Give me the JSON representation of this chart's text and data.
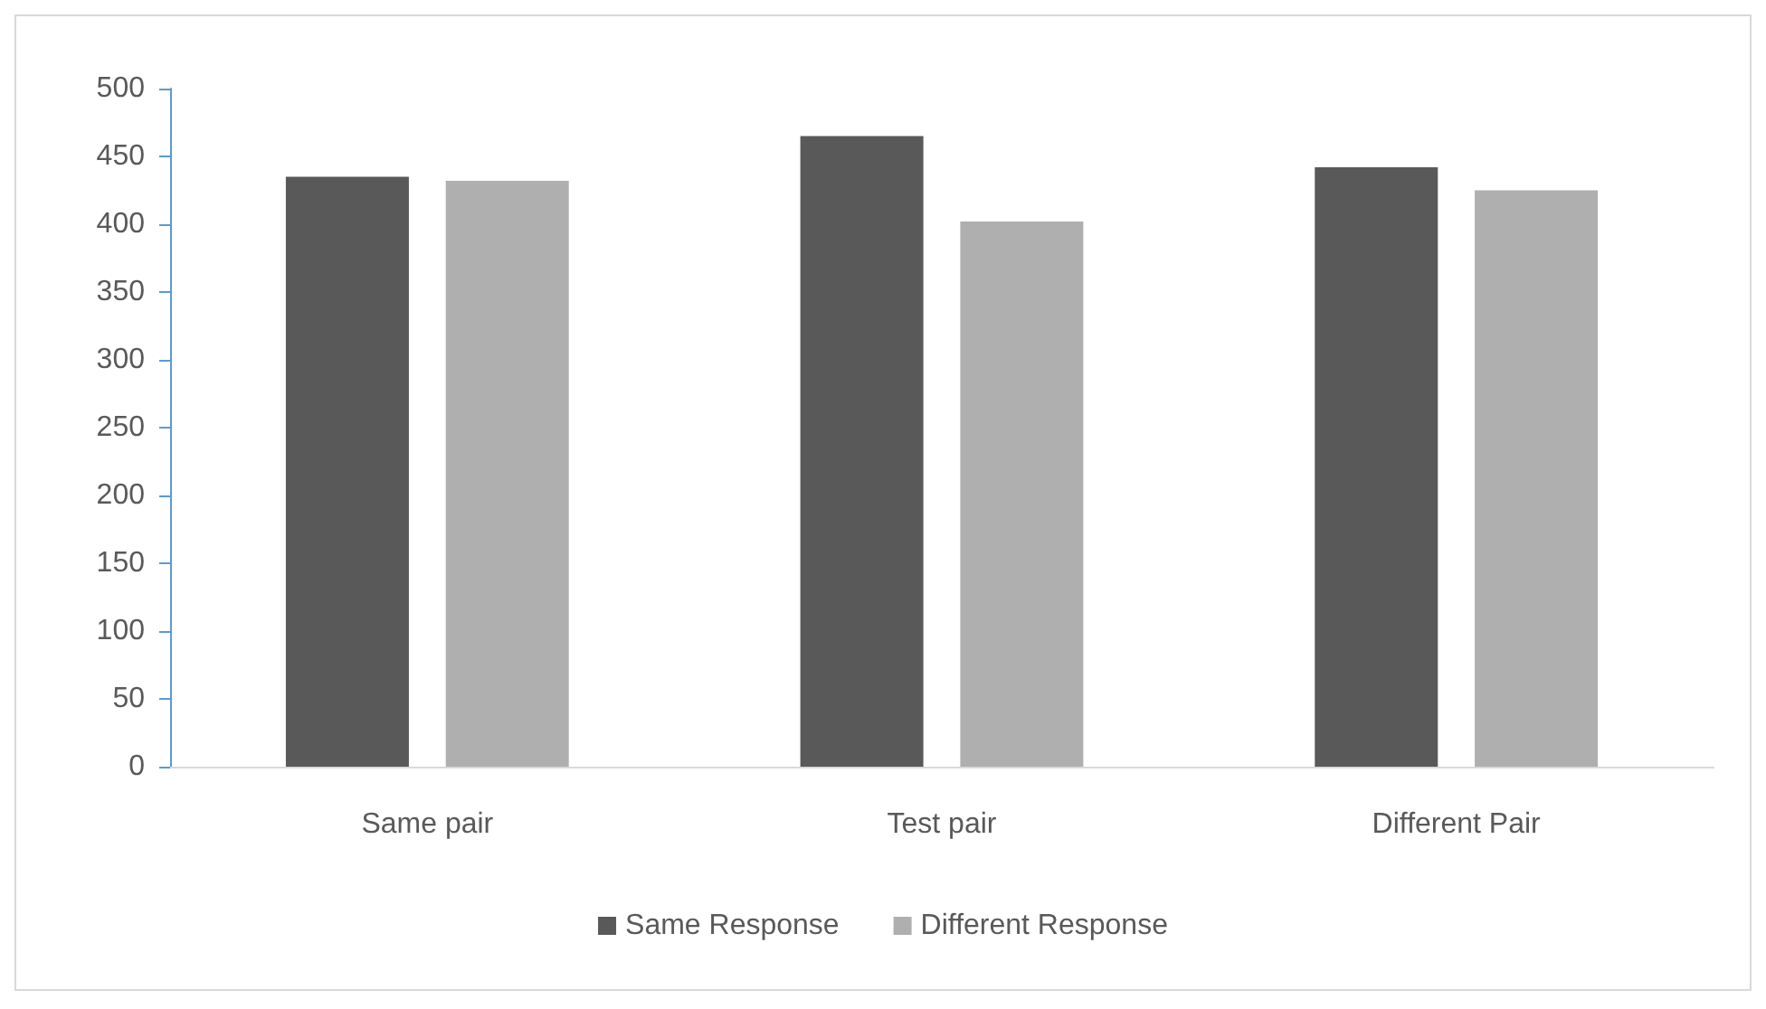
{
  "chart_data": {
    "type": "bar",
    "categories": [
      "Same pair",
      "Test pair",
      "Different Pair"
    ],
    "series": [
      {
        "name": "Same Response",
        "color": "#595959",
        "values": [
          435,
          465,
          442
        ]
      },
      {
        "name": "Different Response",
        "color": "#afafaf",
        "values": [
          432,
          402,
          425
        ]
      }
    ],
    "ylim": [
      0,
      500
    ],
    "yticks": [
      0,
      50,
      100,
      150,
      200,
      250,
      300,
      350,
      400,
      450,
      500
    ],
    "grid": false,
    "legend": "bottom"
  }
}
